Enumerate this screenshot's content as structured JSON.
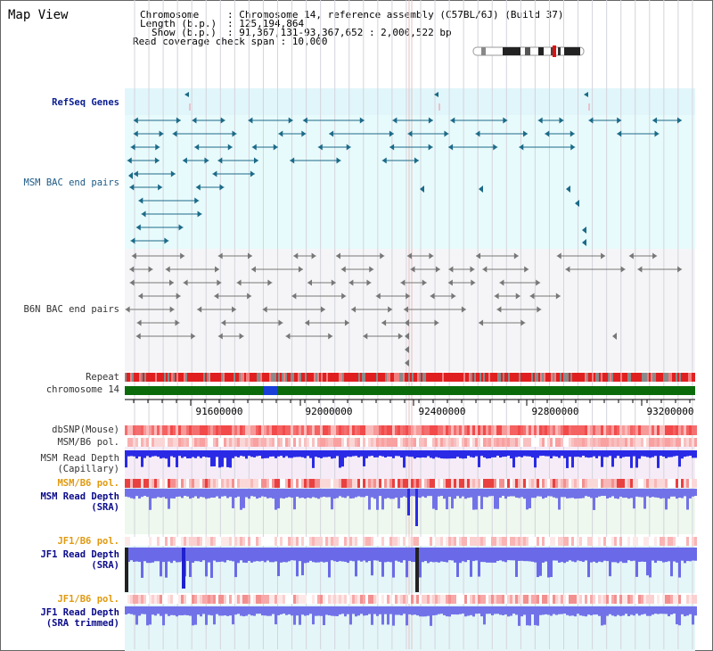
{
  "app": {
    "title": "Map View"
  },
  "info": {
    "chromosome_key": "Chromosome",
    "chromosome_val": ": Chromosome 14, reference assembly (C57BL/6J) (Build 37)",
    "length_key": "Length (b.p.)",
    "length_val": ": 125,194,864",
    "show_key": "Show (b.p.)",
    "show_val": ": 91,367,131-93,367,652 : 2,000,522 bp",
    "coverage": "Read coverage check span : 10,000"
  },
  "tracks": {
    "refseq": "RefSeq Genes",
    "msm_bac": "MSM BAC end pairs",
    "b6n_bac": "B6N BAC end pairs",
    "repeat": "Repeat",
    "chromosome": "chromosome 14",
    "dbsnp": "dbSNP(Mouse)",
    "msm_b6_pol": "MSM/B6 pol.",
    "msm_depth_cap_1": "MSM Read Depth",
    "msm_depth_cap_2": "(Capillary)",
    "msm_b6_pol2": "MSM/B6 pol.",
    "msm_depth_sra_1": "MSM Read Depth",
    "msm_depth_sra_2": "(SRA)",
    "jf1_b6_pol": "JF1/B6 pol.",
    "jf1_depth_sra_1": "JF1 Read Depth",
    "jf1_depth_sra_2": "(SRA)",
    "jf1_b6_pol2": "JF1/B6 pol.",
    "jf1_depth_trim_1": "JF1 Read Depth",
    "jf1_depth_trim_2": "(SRA trimmed)"
  },
  "axis": {
    "ticks": [
      "91600000",
      "92000000",
      "92400000",
      "92800000",
      "93200000"
    ]
  },
  "colors": {
    "refseq_bg": "#e1f6fa",
    "msm_bac_bg": "#e8fbfc",
    "b6n_bac_bg": "#f5f5f7",
    "chromosome": "#0b6b0b",
    "chromosome_highlight": "#1a3fd6",
    "snp": "#f24a4a",
    "depth_blue": "#2a2ae6",
    "depth_sra": "#7272e8"
  }
}
